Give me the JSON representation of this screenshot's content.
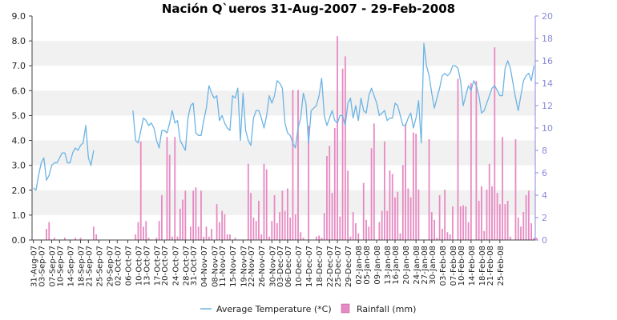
{
  "chart_data": {
    "type": "line",
    "title": "Nación Q`ueros  31-Aug-2007 - 29-Feb-2008",
    "left_axis": {
      "min": 0,
      "max": 9,
      "step": 1,
      "ticks": [
        "0.0",
        "1.0",
        "2.0",
        "3.0",
        "4.0",
        "5.0",
        "6.0",
        "7.0",
        "8.0",
        "9.0"
      ]
    },
    "right_axis": {
      "min": 0,
      "max": 20,
      "step": 2,
      "ticks": [
        "0",
        "2",
        "4",
        "6",
        "8",
        "10",
        "12",
        "14",
        "16",
        "18",
        "20"
      ]
    },
    "x_tick_labels": [
      "31-Aug-07",
      "03-Sep-07",
      "07-Sep-07",
      "10-Sep-07",
      "14-Sep-07",
      "18-Sep-07",
      "21-Sep-07",
      "25-Sep-07",
      "29-Sep-07",
      "02-Oct-07",
      "06-Oct-07",
      "10-Oct-07",
      "13-Oct-07",
      "17-Oct-07",
      "20-Oct-07",
      "24-Oct-07",
      "28-Oct-07",
      "31-Oct-07",
      "04-Nov-07",
      "08-Nov-07",
      "11-Nov-07",
      "15-Nov-07",
      "19-Nov-07",
      "22-Nov-07",
      "26-Nov-07",
      "30-Nov-07",
      "03-Dec-07",
      "06-Dec-07",
      "10-Dec-07",
      "14-Dec-07",
      "18-Dec-07",
      "22-Dec-07",
      "25-Dec-07",
      "29-Dec-07",
      "02-Jan-08",
      "05-Jan-08",
      "09-Jan-08",
      "13-Jan-08",
      "16-Jan-08",
      "20-Jan-08",
      "24-Jan-08",
      "27-Jan-08",
      "30-Jan-08",
      "03-Feb-08",
      "07-Feb-08",
      "10-Feb-08",
      "14-Feb-08",
      "18-Feb-08",
      "21-Feb-08",
      "25-Feb-08"
    ],
    "x_tick_days": [
      0,
      3,
      7,
      10,
      14,
      18,
      21,
      25,
      29,
      32,
      36,
      40,
      43,
      47,
      50,
      54,
      58,
      61,
      65,
      69,
      72,
      76,
      80,
      83,
      87,
      91,
      94,
      97,
      101,
      105,
      109,
      113,
      116,
      120,
      124,
      127,
      131,
      135,
      138,
      142,
      146,
      149,
      152,
      156,
      160,
      163,
      167,
      171,
      174,
      178
    ],
    "grid": true,
    "legend_position": "bottom-center",
    "series": [
      {
        "name": "Average Temperature (*C)",
        "axis": "left",
        "color": "#6cb4e4",
        "values": [
          2.1,
          2.0,
          2.6,
          3.1,
          3.3,
          2.4,
          2.6,
          3.0,
          3.1,
          3.1,
          3.3,
          3.5,
          3.5,
          3.1,
          3.1,
          3.5,
          3.7,
          3.6,
          3.8,
          3.9,
          4.6,
          3.3,
          3.0,
          3.6,
          null,
          null,
          null,
          null,
          null,
          null,
          null,
          null,
          null,
          null,
          null,
          null,
          null,
          null,
          5.2,
          4.0,
          3.9,
          4.4,
          4.9,
          4.8,
          4.6,
          4.7,
          4.5,
          4.0,
          3.7,
          4.4,
          4.4,
          4.3,
          4.7,
          5.2,
          4.7,
          4.8,
          4.0,
          3.8,
          3.6,
          4.9,
          5.4,
          5.5,
          4.3,
          4.2,
          4.2,
          4.8,
          5.3,
          6.2,
          5.9,
          5.7,
          5.8,
          4.8,
          5.0,
          4.7,
          4.5,
          4.4,
          5.8,
          5.7,
          6.1,
          4.0,
          5.9,
          4.4,
          4.0,
          3.8,
          4.9,
          5.2,
          5.2,
          4.9,
          4.5,
          5.0,
          5.8,
          5.5,
          5.8,
          6.4,
          6.3,
          6.1,
          4.7,
          4.3,
          4.2,
          3.9,
          3.7,
          4.5,
          4.9,
          5.9,
          5.5,
          3.9,
          5.2,
          5.3,
          5.4,
          5.8,
          6.5,
          5.0,
          4.6,
          4.9,
          5.2,
          4.8,
          4.7,
          5.0,
          5.0,
          4.6,
          5.5,
          5.7,
          4.9,
          5.4,
          4.8,
          5.7,
          5.2,
          5.1,
          5.8,
          6.1,
          5.8,
          5.5,
          5.0,
          5.1,
          5.2,
          4.8,
          4.9,
          4.9,
          5.5,
          5.4,
          5.0,
          4.6,
          4.6,
          4.9,
          5.1,
          4.5,
          4.9,
          5.6,
          3.9,
          7.9,
          7.0,
          6.6,
          5.9,
          5.3,
          5.7,
          6.1,
          6.6,
          6.7,
          6.6,
          6.7,
          7.0,
          7.0,
          6.9,
          6.4,
          5.4,
          5.8,
          6.2,
          6.0,
          6.4,
          6.2,
          5.8,
          5.1,
          5.2,
          5.5,
          5.8,
          6.1,
          6.2,
          6.0,
          5.8,
          5.8,
          6.9,
          7.2,
          6.9,
          6.3,
          5.7,
          5.2,
          5.8,
          6.4,
          6.6,
          6.7,
          6.4,
          7.0
        ]
      },
      {
        "name": "Rainfall (mm)",
        "axis": "right",
        "color": "#e78ac3",
        "values": [
          0,
          0,
          0,
          0,
          0,
          1.0,
          1.6,
          0,
          0.2,
          0,
          0,
          0,
          0.2,
          0,
          0,
          0,
          0.2,
          0,
          0.2,
          0,
          0,
          0,
          0,
          1.2,
          0.5,
          0,
          0,
          0,
          0,
          0,
          0,
          0,
          0,
          0,
          0,
          0,
          0,
          0,
          0,
          0.5,
          1.6,
          8.8,
          1.2,
          1.7,
          0.2,
          0,
          0,
          0.2,
          1.7,
          4.0,
          0,
          9.2,
          7.6,
          0.3,
          9.2,
          0.3,
          2.8,
          3.6,
          4.4,
          0,
          1.2,
          4.4,
          4.7,
          1.2,
          4.4,
          0.3,
          1.2,
          0.3,
          1.0,
          0,
          3.2,
          1.6,
          2.6,
          2.3,
          0.5,
          0.5,
          0,
          0.2,
          0,
          0,
          0,
          0,
          6.8,
          4.2,
          2.0,
          1.7,
          3.5,
          0.5,
          6.8,
          6.3,
          0.3,
          1.7,
          4.0,
          1.5,
          2.5,
          4.4,
          2.6,
          4.6,
          2.0,
          13.4,
          2.3,
          13.4,
          0.7,
          0.2,
          0,
          10.2,
          0,
          0,
          0.3,
          0.4,
          0.2,
          2.4,
          7.5,
          8.4,
          4.2,
          10.0,
          18.2,
          2.1,
          15.3,
          16.4,
          6.2,
          0.3,
          2.5,
          1.5,
          0.6,
          0,
          5.1,
          1.8,
          1.2,
          8.2,
          10.4,
          0,
          1.6,
          2.6,
          8.8,
          2.6,
          6.2,
          5.9,
          3.8,
          4.3,
          0.6,
          6.7,
          10.4,
          4.6,
          3.8,
          9.6,
          9.5,
          4.5,
          0,
          0,
          0,
          9.0,
          2.5,
          1.8,
          0.2,
          4.0,
          1.0,
          4.5,
          0.7,
          0.5,
          3.0,
          0,
          14.4,
          3.0,
          3.1,
          3.0,
          1.6,
          14.0,
          0,
          14.2,
          3.5,
          4.8,
          0.8,
          4.5,
          6.8,
          4.8,
          17.2,
          4.2,
          3.2,
          9.2,
          3.2,
          3.5,
          0.3,
          0,
          9.0,
          2.0,
          1.2,
          2.5,
          4.0,
          4.4,
          1.5,
          0.2,
          0.2,
          0,
          0,
          0
        ]
      }
    ]
  }
}
